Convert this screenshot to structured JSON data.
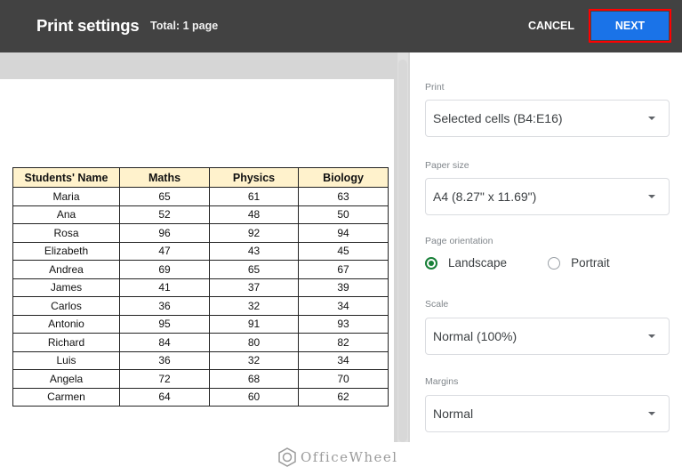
{
  "header": {
    "title": "Print settings",
    "total": "Total: 1 page",
    "cancel_label": "CANCEL",
    "next_label": "NEXT",
    "colors": {
      "bar": "#424242",
      "next_button": "#1a73e8",
      "highlight_outline": "#ff0000"
    }
  },
  "preview": {
    "table": {
      "headers": [
        "Students' Name",
        "Maths",
        "Physics",
        "Biology"
      ],
      "header_bg": "#fff2cc",
      "rows": [
        [
          "Maria",
          "65",
          "61",
          "63"
        ],
        [
          "Ana",
          "52",
          "48",
          "50"
        ],
        [
          "Rosa",
          "96",
          "92",
          "94"
        ],
        [
          "Elizabeth",
          "47",
          "43",
          "45"
        ],
        [
          "Andrea",
          "69",
          "65",
          "67"
        ],
        [
          "James",
          "41",
          "37",
          "39"
        ],
        [
          "Carlos",
          "36",
          "32",
          "34"
        ],
        [
          "Antonio",
          "95",
          "91",
          "93"
        ],
        [
          "Richard",
          "84",
          "80",
          "82"
        ],
        [
          "Luis",
          "36",
          "32",
          "34"
        ],
        [
          "Angela",
          "72",
          "68",
          "70"
        ],
        [
          "Carmen",
          "64",
          "60",
          "62"
        ]
      ]
    },
    "watermark": "OfficeWheel"
  },
  "settings": {
    "print": {
      "label": "Print",
      "value": "Selected cells (B4:E16)"
    },
    "paper_size": {
      "label": "Paper size",
      "value": "A4 (8.27\" x 11.69\")"
    },
    "orientation": {
      "label": "Page orientation",
      "options": [
        "Landscape",
        "Portrait"
      ],
      "selected": "Landscape",
      "accent": "#188038"
    },
    "scale": {
      "label": "Scale",
      "value": "Normal (100%)"
    },
    "margins": {
      "label": "Margins",
      "value": "Normal"
    }
  }
}
